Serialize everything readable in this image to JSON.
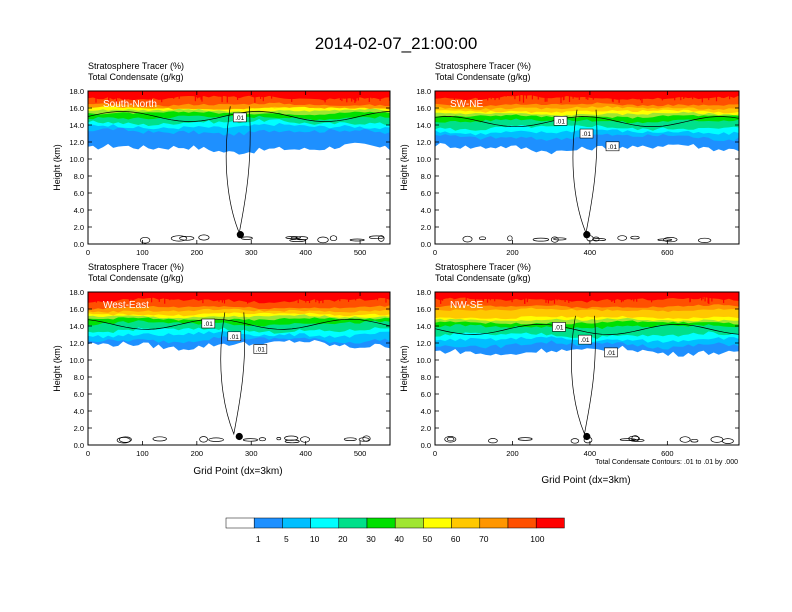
{
  "title": "2014-02-07_21:00:00",
  "panel_header": {
    "line1": "Stratosphere Tracer   (%)",
    "line2": "Total Condensate   (g/kg)"
  },
  "ylabel": "Height (km)",
  "xlabel": "Grid Point (dx=3km)",
  "contour_note": "Total Condensate Contours: .01 to .01 by .000",
  "colors": [
    "#ffffff",
    "#1e90ff",
    "#00bfff",
    "#00ffff",
    "#00e08a",
    "#00e000",
    "#a0e632",
    "#ffff00",
    "#ffc800",
    "#ff9600",
    "#ff5000",
    "#ff0000"
  ],
  "colorbar": {
    "labels": [
      "1",
      "5",
      "10",
      "20",
      "30",
      "40",
      "50",
      "60",
      "70",
      "100"
    ],
    "thresholds": [
      1,
      5,
      10,
      20,
      30,
      40,
      50,
      60,
      70,
      100
    ]
  },
  "chart_data": [
    {
      "type": "heatmap",
      "label": "South-North",
      "xlim": [
        0,
        555
      ],
      "ylim": [
        0,
        18
      ],
      "xticks": [
        "0",
        "100",
        "200",
        "300",
        "400",
        "500"
      ],
      "yticks": [
        "0.0",
        "2.0",
        "4.0",
        "6.0",
        "8.0",
        "10.0",
        "12.0",
        "14.0",
        "16.0",
        "18.0"
      ],
      "contour_labels": [
        ".01"
      ],
      "marker": {
        "x": 280,
        "y": 1.1
      },
      "column_x": 278,
      "fill": {
        "low": 13.8,
        "mid": 15.2,
        "top": 16.4,
        "deep_low": 11.2
      }
    },
    {
      "type": "heatmap",
      "label": "SW-NE",
      "xlim": [
        0,
        785
      ],
      "ylim": [
        0,
        18
      ],
      "xticks": [
        "0",
        "200",
        "400",
        "600"
      ],
      "yticks": [
        "0.0",
        "2.0",
        "4.0",
        "6.0",
        "8.0",
        "10.0",
        "12.0",
        "14.0",
        "16.0",
        "18.0"
      ],
      "contour_labels": [
        ".01",
        ".01",
        ".01"
      ],
      "marker": {
        "x": 392,
        "y": 1.1
      },
      "column_x": 390,
      "fill": {
        "low": 13.2,
        "mid": 14.8,
        "top": 16.4,
        "deep_low": 11.3
      }
    },
    {
      "type": "heatmap",
      "label": "West-East",
      "xlim": [
        0,
        555
      ],
      "ylim": [
        0,
        18
      ],
      "xticks": [
        "0",
        "100",
        "200",
        "300",
        "400",
        "500"
      ],
      "yticks": [
        "0.0",
        "2.0",
        "4.0",
        "6.0",
        "8.0",
        "10.0",
        "12.0",
        "14.0",
        "16.0",
        "18.0"
      ],
      "contour_labels": [
        ".01",
        ".01",
        ".01"
      ],
      "marker": {
        "x": 278,
        "y": 1.0
      },
      "column_x": 268,
      "fill": {
        "low": 13.0,
        "mid": 14.6,
        "top": 16.2,
        "deep_low": 11.8
      }
    },
    {
      "type": "heatmap",
      "label": "NW-SE",
      "xlim": [
        0,
        785
      ],
      "ylim": [
        0,
        18
      ],
      "xticks": [
        "0",
        "200",
        "400",
        "600"
      ],
      "yticks": [
        "0.0",
        "2.0",
        "4.0",
        "6.0",
        "8.0",
        "10.0",
        "12.0",
        "14.0",
        "16.0",
        "18.0"
      ],
      "contour_labels": [
        ".01",
        ".01",
        ".01"
      ],
      "marker": {
        "x": 392,
        "y": 1.0
      },
      "column_x": 386,
      "fill": {
        "low": 12.4,
        "mid": 14.2,
        "top": 16.3,
        "deep_low": 11.0
      }
    }
  ]
}
